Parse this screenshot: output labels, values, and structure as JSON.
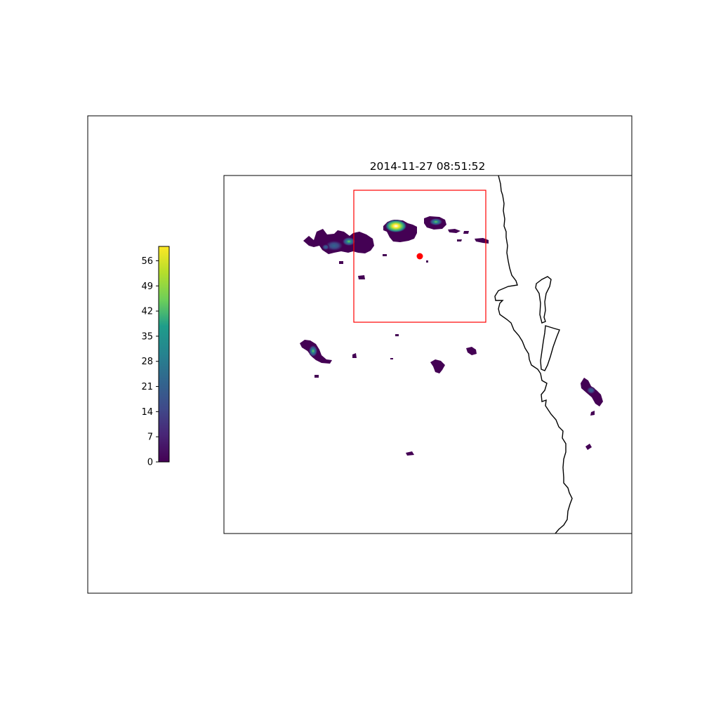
{
  "title": "2014-11-27 08:51:52",
  "colorbar": {
    "colormap": "viridis",
    "range": [
      0,
      60
    ],
    "ticks": [
      {
        "value": 0,
        "label": "0"
      },
      {
        "value": 7,
        "label": "7"
      },
      {
        "value": 14,
        "label": "14"
      },
      {
        "value": 21,
        "label": "21"
      },
      {
        "value": 28,
        "label": "28"
      },
      {
        "value": 35,
        "label": "35"
      },
      {
        "value": 42,
        "label": "42"
      },
      {
        "value": 49,
        "label": "49"
      },
      {
        "value": 56,
        "label": "56"
      }
    ]
  },
  "colors": {
    "frame": "#000000",
    "coastline": "#000000",
    "domain_box": "#ff0000",
    "station_marker": "#ff0000",
    "background": "#ffffff"
  },
  "map": {
    "coastline_shown": true,
    "station_marker_shown": true,
    "domain_box_shown": true
  }
}
